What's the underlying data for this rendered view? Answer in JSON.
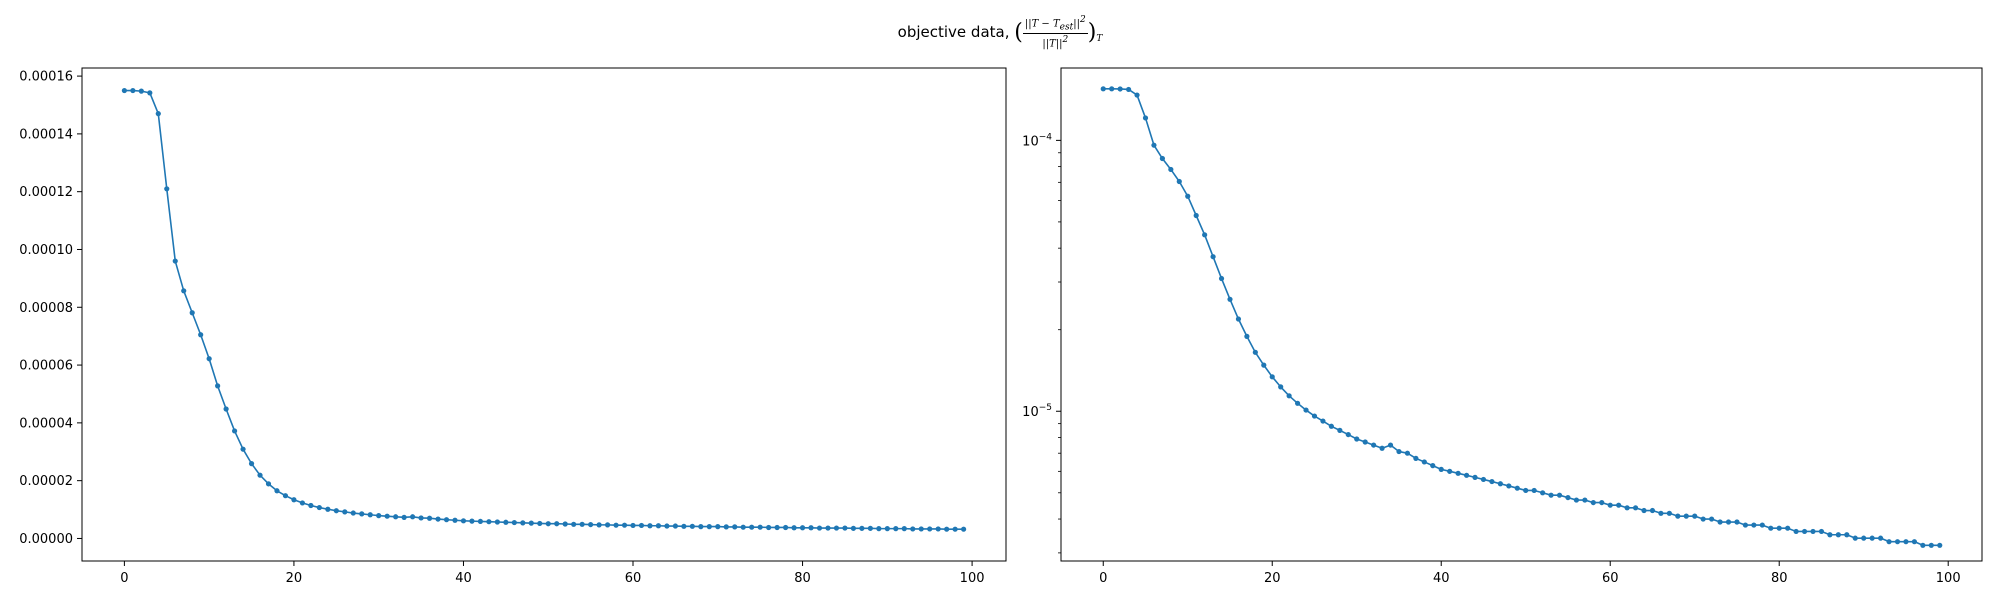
{
  "figure": {
    "suptitle": {
      "prefix": "objective data, ",
      "numerator": "||T − T",
      "numerator_sub": "est",
      "numerator_tail": "||",
      "numerator_sup": "2",
      "denominator": "||T||",
      "denominator_sup": "2",
      "open_paren": "(",
      "close_paren": ")",
      "subscript": "T"
    }
  },
  "colors": {
    "series": "#1f77b4",
    "axes": "#000000"
  },
  "chart_data": [
    {
      "type": "line",
      "scale": "linear",
      "xlim": [
        -5,
        104
      ],
      "ylim": [
        -7.8e-06,
        0.0001628
      ],
      "x_ticks": [
        0,
        20,
        40,
        60,
        80,
        100
      ],
      "x_tick_labels": [
        "0",
        "20",
        "40",
        "60",
        "80",
        "100"
      ],
      "y_ticks": [
        0,
        2e-05,
        4e-05,
        6e-05,
        8e-05,
        0.0001,
        0.00012,
        0.00014,
        0.00016
      ],
      "y_tick_labels": [
        "0.00000",
        "0.00002",
        "0.00004",
        "0.00006",
        "0.00008",
        "0.00010",
        "0.00012",
        "0.00014",
        "0.00016"
      ],
      "grid": false,
      "marker": "dot"
    },
    {
      "type": "line",
      "scale": "log",
      "xlim": [
        -5,
        104
      ],
      "ylim": [
        2.8e-06,
        0.000185
      ],
      "x_ticks": [
        0,
        20,
        40,
        60,
        80,
        100
      ],
      "x_tick_labels": [
        "0",
        "20",
        "40",
        "60",
        "80",
        "100"
      ],
      "y_major_ticks": [
        1e-05,
        0.0001
      ],
      "y_major_tick_labels": [
        [
          "10",
          "−5"
        ],
        [
          "10",
          "−4"
        ]
      ],
      "y_minor_ticks": [
        3e-06,
        4e-06,
        5e-06,
        6e-06,
        7e-06,
        8e-06,
        9e-06,
        2e-05,
        3e-05,
        4e-05,
        5e-05,
        6e-05,
        7e-05,
        8e-05,
        9e-05
      ],
      "grid": false,
      "marker": "dot"
    }
  ],
  "series_data": {
    "x": [
      0,
      1,
      2,
      3,
      4,
      5,
      6,
      7,
      8,
      9,
      10,
      11,
      12,
      13,
      14,
      15,
      16,
      17,
      18,
      19,
      20,
      21,
      22,
      23,
      24,
      25,
      26,
      27,
      28,
      29,
      30,
      31,
      32,
      33,
      34,
      35,
      36,
      37,
      38,
      39,
      40,
      41,
      42,
      43,
      44,
      45,
      46,
      47,
      48,
      49,
      50,
      51,
      52,
      53,
      54,
      55,
      56,
      57,
      58,
      59,
      60,
      61,
      62,
      63,
      64,
      65,
      66,
      67,
      68,
      69,
      70,
      71,
      72,
      73,
      74,
      75,
      76,
      77,
      78,
      79,
      80,
      81,
      82,
      83,
      84,
      85,
      86,
      87,
      88,
      89,
      90,
      91,
      92,
      93,
      94,
      95,
      96,
      97,
      98,
      99
    ],
    "y": [
      0.000155,
      0.000155,
      0.0001548,
      0.0001542,
      0.000147,
      0.000121,
      9.6e-05,
      8.57e-05,
      7.81e-05,
      7.05e-05,
      6.22e-05,
      5.28e-05,
      4.48e-05,
      3.72e-05,
      3.09e-05,
      2.59e-05,
      2.19e-05,
      1.89e-05,
      1.65e-05,
      1.48e-05,
      1.34e-05,
      1.23e-05,
      1.14e-05,
      1.07e-05,
      1.01e-05,
      9.6e-06,
      9.2e-06,
      8.8e-06,
      8.5e-06,
      8.2e-06,
      7.9e-06,
      7.7e-06,
      7.5e-06,
      7.3e-06,
      7.5e-06,
      7.1e-06,
      7e-06,
      6.7e-06,
      6.5e-06,
      6.3e-06,
      6.1e-06,
      6e-06,
      5.9e-06,
      5.8e-06,
      5.7e-06,
      5.6e-06,
      5.5e-06,
      5.4e-06,
      5.3e-06,
      5.2e-06,
      5.1e-06,
      5.1e-06,
      5e-06,
      4.9e-06,
      4.9e-06,
      4.8e-06,
      4.7e-06,
      4.7e-06,
      4.6e-06,
      4.6e-06,
      4.5e-06,
      4.5e-06,
      4.4e-06,
      4.4e-06,
      4.3e-06,
      4.3e-06,
      4.2e-06,
      4.2e-06,
      4.1e-06,
      4.1e-06,
      4.1e-06,
      4e-06,
      4e-06,
      3.9e-06,
      3.9e-06,
      3.9e-06,
      3.8e-06,
      3.8e-06,
      3.8e-06,
      3.7e-06,
      3.7e-06,
      3.7e-06,
      3.6e-06,
      3.6e-06,
      3.6e-06,
      3.6e-06,
      3.5e-06,
      3.5e-06,
      3.5e-06,
      3.4e-06,
      3.4e-06,
      3.4e-06,
      3.4e-06,
      3.3e-06,
      3.3e-06,
      3.3e-06,
      3.3e-06,
      3.2e-06,
      3.2e-06,
      3.2e-06
    ]
  }
}
